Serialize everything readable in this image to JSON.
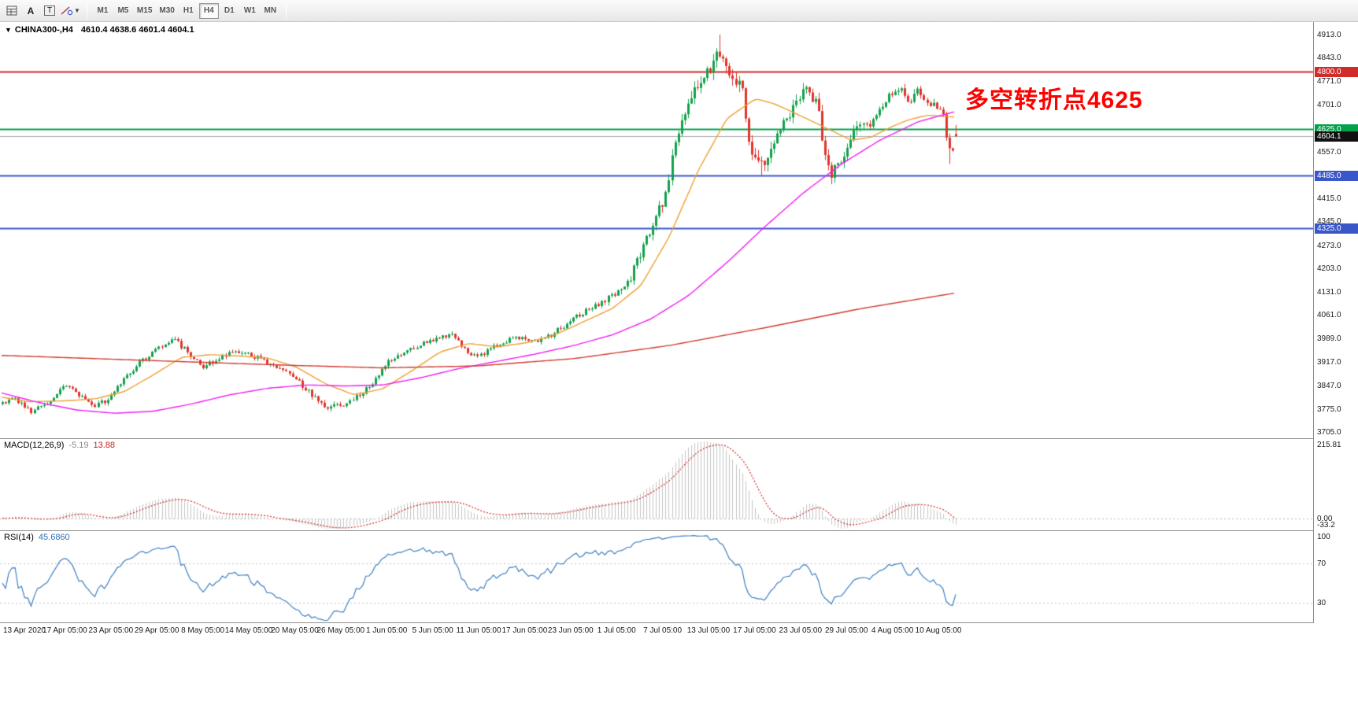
{
  "toolbar": {
    "tools": {
      "cursor": "A",
      "text": "T"
    },
    "timeframes": [
      "M1",
      "M5",
      "M15",
      "M30",
      "H1",
      "H4",
      "D1",
      "W1",
      "MN"
    ],
    "active_timeframe": "H4"
  },
  "chart": {
    "title": "CHINA300-,H4",
    "ohlc": "4610.4 4638.6 4601.4 4604.1",
    "annotation": {
      "text": "多空转折点4625",
      "color": "#FF0000"
    }
  },
  "chart_data": {
    "type": "candlestick",
    "symbol": "CHINA300-",
    "timeframe": "H4",
    "last_ohlc": {
      "open": 4610.4,
      "high": 4638.6,
      "low": 4601.4,
      "close": 4604.1
    },
    "y_range": [
      3686,
      4951
    ],
    "y_ticks": [
      "4913.0",
      "4843.0",
      "4771.0",
      "4701.0",
      "4631.0",
      "4557.0",
      "4487.0",
      "4415.0",
      "4345.0",
      "4273.0",
      "4203.0",
      "4131.0",
      "4061.0",
      "3989.0",
      "3917.0",
      "3847.0",
      "3775.0",
      "3705.0"
    ],
    "levels": [
      {
        "value": 4800.0,
        "label": "4800.0",
        "color": "#d02a2a",
        "badge": "#d02a2a"
      },
      {
        "value": 4625.0,
        "label": "4625.0",
        "color": "#00a24a",
        "badge": "#00a24a"
      },
      {
        "value": 4604.1,
        "label": "4604.1",
        "color": "#aaaaaa",
        "badge": "#111111",
        "style": "price"
      },
      {
        "value": 4485.0,
        "label": "4485.0",
        "color": "#3a56c8",
        "badge": "#3a56c8"
      },
      {
        "value": 4325.0,
        "label": "4325.0",
        "color": "#3a56c8",
        "badge": "#3a56c8"
      }
    ],
    "time_labels": [
      "13 Apr 2020",
      "17 Apr 05:00",
      "23 Apr 05:00",
      "29 Apr 05:00",
      "8 May 05:00",
      "14 May 05:00",
      "20 May 05:00",
      "26 May 05:00",
      "1 Jun 05:00",
      "5 Jun 05:00",
      "11 Jun 05:00",
      "17 Jun 05:00",
      "23 Jun 05:00",
      "1 Jul 05:00",
      "7 Jul 05:00",
      "13 Jul 05:00",
      "17 Jul 05:00",
      "23 Jul 05:00",
      "29 Jul 05:00",
      "4 Aug 05:00",
      "10 Aug 05:00"
    ],
    "candle_count": 300,
    "colors": {
      "up": "#14a04c",
      "down": "#e0352b"
    },
    "price_path": [
      [
        0.0,
        3790
      ],
      [
        0.012,
        3810
      ],
      [
        0.03,
        3765
      ],
      [
        0.05,
        3800
      ],
      [
        0.065,
        3845
      ],
      [
        0.08,
        3820
      ],
      [
        0.095,
        3785
      ],
      [
        0.11,
        3800
      ],
      [
        0.125,
        3860
      ],
      [
        0.14,
        3905
      ],
      [
        0.152,
        3935
      ],
      [
        0.166,
        3965
      ],
      [
        0.18,
        3985
      ],
      [
        0.195,
        3945
      ],
      [
        0.21,
        3905
      ],
      [
        0.225,
        3925
      ],
      [
        0.24,
        3945
      ],
      [
        0.26,
        3940
      ],
      [
        0.28,
        3915
      ],
      [
        0.3,
        3885
      ],
      [
        0.315,
        3845
      ],
      [
        0.33,
        3800
      ],
      [
        0.345,
        3780
      ],
      [
        0.36,
        3795
      ],
      [
        0.375,
        3815
      ],
      [
        0.39,
        3860
      ],
      [
        0.405,
        3920
      ],
      [
        0.425,
        3955
      ],
      [
        0.44,
        3975
      ],
      [
        0.455,
        3990
      ],
      [
        0.47,
        4005
      ],
      [
        0.487,
        3950
      ],
      [
        0.5,
        3935
      ],
      [
        0.515,
        3965
      ],
      [
        0.53,
        3985
      ],
      [
        0.545,
        3995
      ],
      [
        0.56,
        3975
      ],
      [
        0.575,
        4000
      ],
      [
        0.59,
        4030
      ],
      [
        0.605,
        4060
      ],
      [
        0.62,
        4090
      ],
      [
        0.635,
        4110
      ],
      [
        0.648,
        4130
      ],
      [
        0.658,
        4170
      ],
      [
        0.67,
        4250
      ],
      [
        0.682,
        4330
      ],
      [
        0.694,
        4420
      ],
      [
        0.703,
        4540
      ],
      [
        0.712,
        4660
      ],
      [
        0.722,
        4720
      ],
      [
        0.732,
        4760
      ],
      [
        0.742,
        4800
      ],
      [
        0.752,
        4855
      ],
      [
        0.762,
        4810
      ],
      [
        0.772,
        4770
      ],
      [
        0.776,
        4755
      ],
      [
        0.782,
        4570
      ],
      [
        0.79,
        4520
      ],
      [
        0.797,
        4512
      ],
      [
        0.808,
        4580
      ],
      [
        0.82,
        4640
      ],
      [
        0.832,
        4690
      ],
      [
        0.842,
        4745
      ],
      [
        0.85,
        4705
      ],
      [
        0.856,
        4700
      ],
      [
        0.862,
        4540
      ],
      [
        0.868,
        4490
      ],
      [
        0.878,
        4530
      ],
      [
        0.89,
        4590
      ],
      [
        0.9,
        4650
      ],
      [
        0.91,
        4630
      ],
      [
        0.92,
        4680
      ],
      [
        0.93,
        4720
      ],
      [
        0.942,
        4750
      ],
      [
        0.952,
        4715
      ],
      [
        0.962,
        4745
      ],
      [
        0.972,
        4690
      ],
      [
        0.982,
        4700
      ],
      [
        0.986,
        4690
      ],
      [
        0.991,
        4575
      ],
      [
        0.995,
        4550
      ],
      [
        1.0,
        4604.1
      ]
    ],
    "volatility": [
      [
        0,
        1
      ],
      [
        0.3,
        1
      ],
      [
        0.34,
        1.25
      ],
      [
        0.4,
        1
      ],
      [
        0.6,
        1
      ],
      [
        0.65,
        1.5
      ],
      [
        0.68,
        2.2
      ],
      [
        0.72,
        2.8
      ],
      [
        0.76,
        3.0
      ],
      [
        0.8,
        2.8
      ],
      [
        0.87,
        2.5
      ],
      [
        0.93,
        1.9
      ],
      [
        1,
        1.6
      ]
    ],
    "pins": [
      {
        "f": 0.752,
        "type": "high",
        "value": 4913
      },
      {
        "f": 0.795,
        "type": "low",
        "value": 4485
      },
      {
        "f": 0.868,
        "type": "low",
        "value": 4458
      },
      {
        "f": 0.994,
        "type": "low",
        "value": 4520
      }
    ],
    "moving_averages": [
      {
        "name": "ma-fast",
        "color": "#eda035",
        "path": [
          [
            0,
            3812
          ],
          [
            0.03,
            3797
          ],
          [
            0.07,
            3800
          ],
          [
            0.1,
            3806
          ],
          [
            0.13,
            3828
          ],
          [
            0.16,
            3878
          ],
          [
            0.19,
            3932
          ],
          [
            0.22,
            3940
          ],
          [
            0.25,
            3936
          ],
          [
            0.28,
            3930
          ],
          [
            0.31,
            3902
          ],
          [
            0.34,
            3852
          ],
          [
            0.37,
            3818
          ],
          [
            0.4,
            3836
          ],
          [
            0.43,
            3890
          ],
          [
            0.46,
            3948
          ],
          [
            0.49,
            3974
          ],
          [
            0.52,
            3964
          ],
          [
            0.55,
            3976
          ],
          [
            0.58,
            4000
          ],
          [
            0.61,
            4040
          ],
          [
            0.64,
            4080
          ],
          [
            0.67,
            4150
          ],
          [
            0.7,
            4300
          ],
          [
            0.73,
            4500
          ],
          [
            0.76,
            4658
          ],
          [
            0.79,
            4718
          ],
          [
            0.81,
            4702
          ],
          [
            0.84,
            4662
          ],
          [
            0.87,
            4620
          ],
          [
            0.89,
            4592
          ],
          [
            0.91,
            4600
          ],
          [
            0.93,
            4630
          ],
          [
            0.95,
            4654
          ],
          [
            0.97,
            4668
          ],
          [
            1,
            4662
          ]
        ]
      },
      {
        "name": "ma-medium",
        "color": "#f01ff0",
        "path": [
          [
            0,
            3825
          ],
          [
            0.04,
            3795
          ],
          [
            0.08,
            3772
          ],
          [
            0.12,
            3762
          ],
          [
            0.16,
            3768
          ],
          [
            0.2,
            3790
          ],
          [
            0.24,
            3818
          ],
          [
            0.28,
            3838
          ],
          [
            0.32,
            3848
          ],
          [
            0.36,
            3845
          ],
          [
            0.4,
            3848
          ],
          [
            0.44,
            3870
          ],
          [
            0.48,
            3898
          ],
          [
            0.52,
            3920
          ],
          [
            0.56,
            3942
          ],
          [
            0.6,
            3968
          ],
          [
            0.64,
            4000
          ],
          [
            0.68,
            4048
          ],
          [
            0.72,
            4120
          ],
          [
            0.76,
            4220
          ],
          [
            0.8,
            4330
          ],
          [
            0.84,
            4432
          ],
          [
            0.88,
            4520
          ],
          [
            0.92,
            4592
          ],
          [
            0.96,
            4648
          ],
          [
            1,
            4680
          ]
        ]
      },
      {
        "name": "ma-slow",
        "color": "#cf3b2f",
        "path": [
          [
            0,
            3938
          ],
          [
            0.1,
            3928
          ],
          [
            0.2,
            3918
          ],
          [
            0.3,
            3908
          ],
          [
            0.4,
            3900
          ],
          [
            0.5,
            3906
          ],
          [
            0.6,
            3928
          ],
          [
            0.7,
            3968
          ],
          [
            0.8,
            4022
          ],
          [
            0.9,
            4080
          ],
          [
            1,
            4128
          ]
        ]
      }
    ],
    "macd": {
      "label": "MACD(12,26,9)",
      "value_main": "-5.19",
      "value_signal": "13.88",
      "axis": [
        "215.81",
        "0.00",
        "-33.2"
      ],
      "range": [
        -33.2,
        215.81
      ],
      "histogram_color": "#c4c4c4",
      "signal_color": "#d02a2a"
    },
    "rsi": {
      "label": "RSI(14)",
      "value": "45.6860",
      "axis": [
        "100",
        "70",
        "30"
      ],
      "levels": [
        70,
        30
      ],
      "range": [
        10,
        103
      ],
      "color": "#3e7fc1"
    }
  }
}
